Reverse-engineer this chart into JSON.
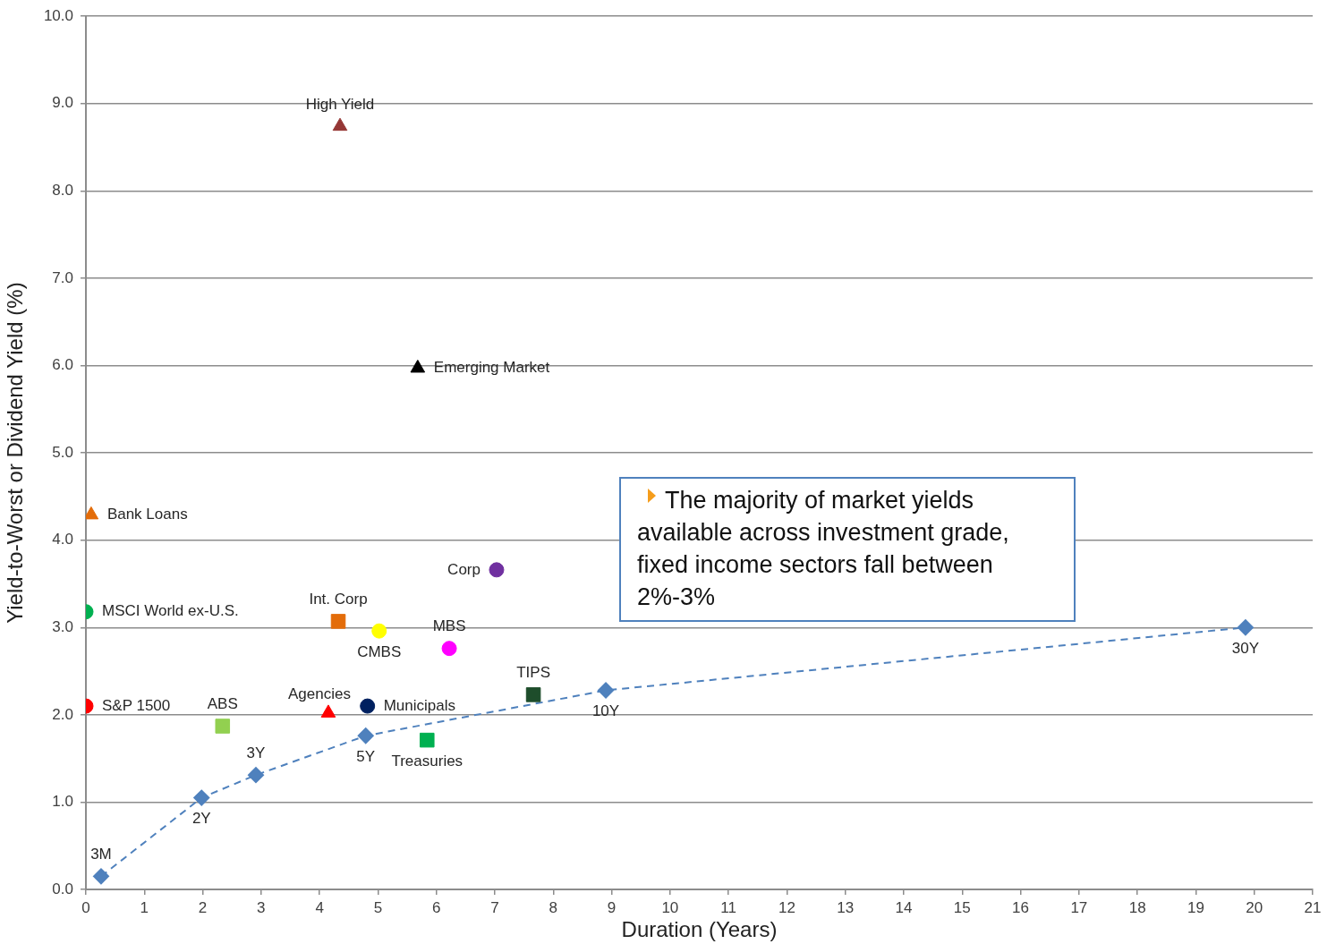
{
  "chart_data": {
    "type": "scatter",
    "xlabel": "Duration (Years)",
    "ylabel": "Yield-to-Worst or Dividend Yield (%)",
    "xlim": [
      0,
      21
    ],
    "xticks": [
      0,
      1,
      2,
      3,
      4,
      5,
      6,
      7,
      8,
      9,
      10,
      11,
      12,
      13,
      14,
      15,
      16,
      17,
      18,
      19,
      20,
      21
    ],
    "ylim": [
      0,
      10
    ],
    "yticks": [
      {
        "value": 0,
        "label": "0.0"
      },
      {
        "value": 1,
        "label": "1.0"
      },
      {
        "value": 2,
        "label": "2.0"
      },
      {
        "value": 3,
        "label": "3.0"
      },
      {
        "value": 4,
        "label": "4.0"
      },
      {
        "value": 5,
        "label": "5.0"
      },
      {
        "value": 6,
        "label": "6.0"
      },
      {
        "value": 7,
        "label": "7.0"
      },
      {
        "value": 8,
        "label": "8.0"
      },
      {
        "value": 9,
        "label": "9.0"
      },
      {
        "value": 10,
        "label": "10.0"
      }
    ],
    "grid": "y",
    "legend": false,
    "series": [
      {
        "name": "High Yield",
        "color": "#953735",
        "marker": "triangle",
        "x": [
          4.35
        ],
        "values": [
          8.74
        ]
      },
      {
        "name": "Emerging Market",
        "color": "#000000",
        "marker": "triangle",
        "x": [
          5.68
        ],
        "values": [
          5.97
        ]
      },
      {
        "name": "Bank Loans",
        "color": "#e36c09",
        "marker": "triangle",
        "x": [
          0.09
        ],
        "values": [
          4.29
        ]
      },
      {
        "name": "Corp",
        "color": "#7030a0",
        "marker": "circle",
        "x": [
          7.03
        ],
        "values": [
          3.66
        ]
      },
      {
        "name": "MSCI World ex-U.S.",
        "color": "#00b050",
        "marker": "circle",
        "x": [
          0
        ],
        "values": [
          3.18
        ]
      },
      {
        "name": "Int. Corp",
        "color": "#e36c09",
        "marker": "square",
        "x": [
          4.32
        ],
        "values": [
          3.07
        ]
      },
      {
        "name": "CMBS",
        "color": "#ffff00",
        "marker": "circle",
        "x": [
          5.02
        ],
        "values": [
          2.96
        ]
      },
      {
        "name": "MBS",
        "color": "#ff00ff",
        "marker": "circle",
        "x": [
          6.22
        ],
        "values": [
          2.76
        ]
      },
      {
        "name": "TIPS",
        "color": "#1e4d2b",
        "marker": "square",
        "x": [
          7.66
        ],
        "values": [
          2.23
        ]
      },
      {
        "name": "S&P 1500",
        "color": "#ff0000",
        "marker": "circle",
        "x": [
          0
        ],
        "values": [
          2.1
        ]
      },
      {
        "name": "Agencies",
        "color": "#ff0000",
        "marker": "triangle",
        "x": [
          4.15
        ],
        "values": [
          2.02
        ]
      },
      {
        "name": "Municipals",
        "color": "#002060",
        "marker": "circle",
        "x": [
          4.82
        ],
        "values": [
          2.1
        ]
      },
      {
        "name": "ABS",
        "color": "#92d050",
        "marker": "square",
        "x": [
          2.34
        ],
        "values": [
          1.87
        ]
      },
      {
        "name": "Treasuries",
        "color": "#00b050",
        "marker": "square",
        "x": [
          5.84
        ],
        "values": [
          1.71
        ]
      },
      {
        "type": "line",
        "color": "#4f81bd",
        "marker": "diamond",
        "line_style": "dashed",
        "x": [
          0.26,
          1.98,
          2.91,
          4.79,
          8.9,
          19.85
        ],
        "values": [
          0.15,
          1.05,
          1.31,
          1.76,
          2.28,
          3.0
        ]
      }
    ],
    "annotations": [
      "The majority of market yields available across investment grade, fixed income sectors fall between 2%-3%",
      {
        "text": "3M",
        "x": 0.26,
        "y": 0.15
      },
      {
        "text": "2Y",
        "x": 1.98,
        "y": 1.05
      },
      {
        "text": "3Y",
        "x": 2.91,
        "y": 1.31
      },
      {
        "text": "5Y",
        "x": 4.79,
        "y": 1.76
      },
      {
        "text": "10Y",
        "x": 8.9,
        "y": 2.28
      },
      {
        "text": "30Y",
        "x": 19.85,
        "y": 3.0
      }
    ]
  }
}
